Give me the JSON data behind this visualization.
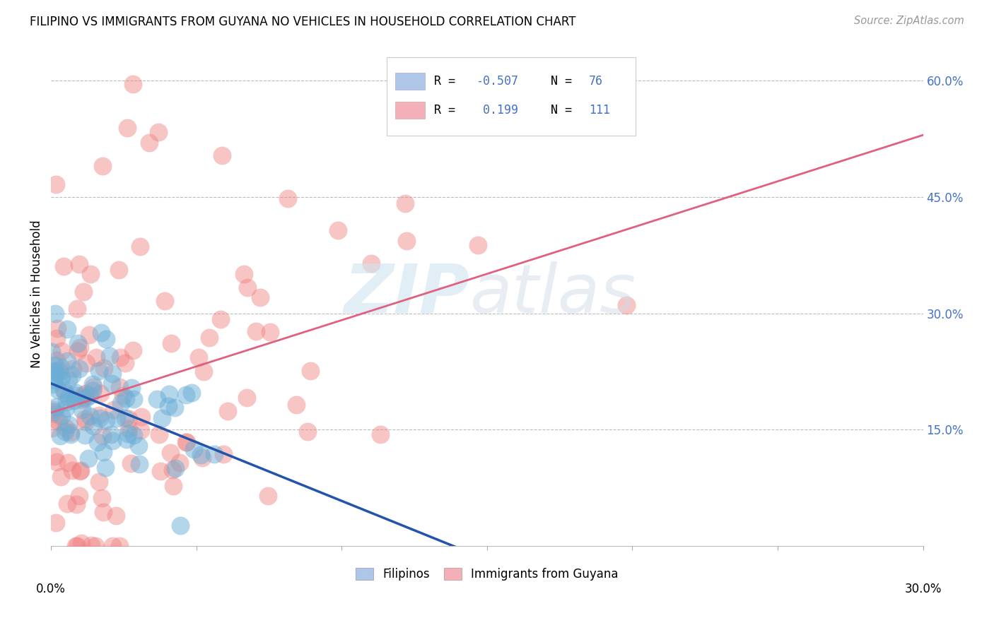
{
  "title": "FILIPINO VS IMMIGRANTS FROM GUYANA NO VEHICLES IN HOUSEHOLD CORRELATION CHART",
  "source": "Source: ZipAtlas.com",
  "ylabel": "No Vehicles in Household",
  "xlim": [
    0.0,
    0.3
  ],
  "ylim": [
    0.0,
    0.65
  ],
  "right_yticks": [
    0.15,
    0.3,
    0.45,
    0.6
  ],
  "right_yticklabels": [
    "15.0%",
    "30.0%",
    "45.0%",
    "60.0%"
  ],
  "bottom_legend": [
    "Filipinos",
    "Immigrants from Guyana"
  ],
  "blue_color": "#6aaed6",
  "pink_color": "#f08080",
  "blue_line_color": "#2255aa",
  "pink_line_color": "#e06080",
  "filipino_R": -0.507,
  "filipino_N": 76,
  "guyana_R": 0.199,
  "guyana_N": 111,
  "filipino_seed": 42,
  "guyana_seed": 77
}
